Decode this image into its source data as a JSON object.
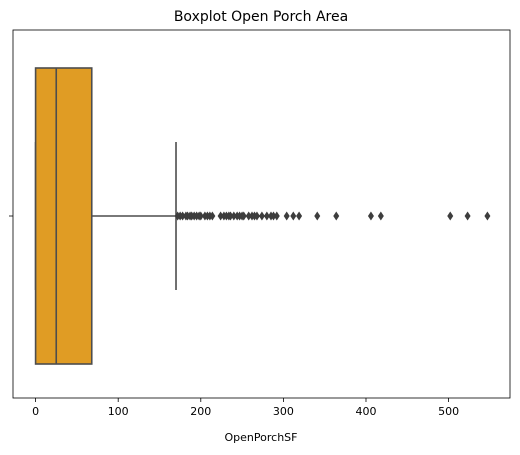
{
  "chart_data": {
    "type": "box",
    "title": "Boxplot Open Porch Area",
    "xlabel": "OpenPorchSF",
    "xlim": [
      -27.35,
      574.35
    ],
    "xticks": [
      0,
      100,
      200,
      300,
      400,
      500
    ],
    "color": "#e09c24",
    "line_color": "#4d4d4d",
    "box": {
      "min": 0,
      "q1": 0,
      "median": 25,
      "q3": 68,
      "max": 170,
      "outliers": [
        172,
        175,
        178,
        182,
        184,
        187,
        189,
        192,
        195,
        198,
        200,
        205,
        208,
        211,
        214,
        224,
        228,
        231,
        234,
        236,
        240,
        244,
        247,
        250,
        252,
        258,
        262,
        265,
        268,
        274,
        280,
        285,
        288,
        292,
        304,
        312,
        319,
        341,
        364,
        406,
        418,
        502,
        523,
        547
      ]
    }
  }
}
